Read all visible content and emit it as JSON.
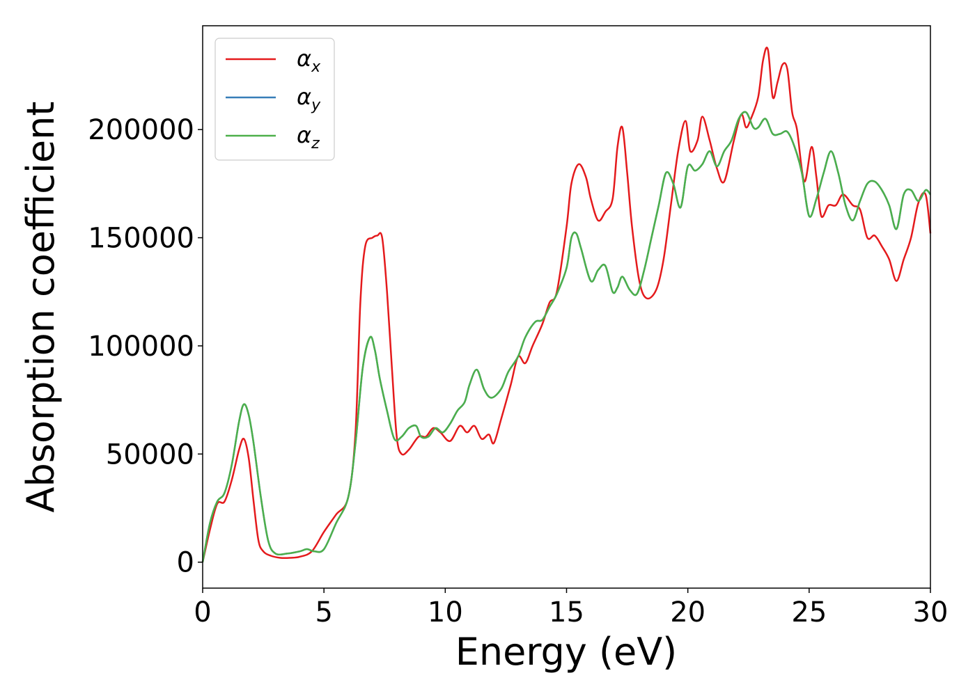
{
  "chart_data": {
    "type": "line",
    "title": "",
    "xlabel": "Energy (eV)",
    "ylabel": "Absorption coefficient",
    "xlim": [
      0,
      30
    ],
    "ylim": [
      -12000,
      248000
    ],
    "xticks": [
      0,
      5,
      10,
      15,
      20,
      25,
      30
    ],
    "xtick_labels": [
      "0",
      "5",
      "10",
      "15",
      "20",
      "25",
      "30"
    ],
    "yticks": [
      0,
      50000,
      100000,
      150000,
      200000
    ],
    "ytick_labels": [
      "0",
      "50000",
      "100000",
      "150000",
      "200000"
    ],
    "grid": false,
    "legend_position": "top-left",
    "series": [
      {
        "name": "α",
        "subscript": "x",
        "color": "#e41a1c",
        "x": [
          0,
          0.3,
          0.6,
          0.9,
          1.2,
          1.5,
          1.7,
          1.9,
          2.1,
          2.3,
          2.5,
          2.8,
          3.2,
          3.6,
          4.0,
          4.5,
          5.0,
          5.5,
          6.0,
          6.3,
          6.5,
          6.7,
          7.0,
          7.2,
          7.4,
          7.6,
          7.8,
          8.0,
          8.2,
          8.5,
          8.9,
          9.2,
          9.5,
          9.8,
          10.2,
          10.6,
          10.9,
          11.2,
          11.5,
          11.8,
          12.0,
          12.3,
          12.7,
          13.0,
          13.3,
          13.6,
          14.0,
          14.3,
          14.6,
          15.0,
          15.2,
          15.5,
          15.8,
          16.0,
          16.3,
          16.6,
          16.9,
          17.1,
          17.3,
          17.5,
          17.7,
          18.0,
          18.3,
          18.7,
          19.0,
          19.3,
          19.6,
          19.9,
          20.1,
          20.4,
          20.6,
          20.9,
          21.2,
          21.5,
          21.9,
          22.2,
          22.4,
          22.6,
          22.9,
          23.1,
          23.3,
          23.5,
          23.7,
          23.9,
          24.1,
          24.3,
          24.5,
          24.8,
          25.1,
          25.3,
          25.5,
          25.8,
          26.1,
          26.4,
          26.8,
          27.1,
          27.4,
          27.7,
          28.0,
          28.3,
          28.6,
          28.9,
          29.2,
          29.5,
          29.8,
          30.0
        ],
        "values": [
          0,
          15000,
          27000,
          28000,
          38000,
          52000,
          57000,
          48000,
          28000,
          10000,
          5000,
          3000,
          2000,
          2000,
          2500,
          5000,
          14000,
          22000,
          30000,
          60000,
          120000,
          146000,
          150000,
          151000,
          150000,
          125000,
          90000,
          58000,
          50000,
          52000,
          58000,
          58000,
          62000,
          60000,
          56000,
          63000,
          60000,
          63000,
          57000,
          59000,
          55000,
          66000,
          82000,
          95000,
          92000,
          100000,
          110000,
          120000,
          125000,
          155000,
          175000,
          184000,
          178000,
          168000,
          158000,
          162000,
          168000,
          192000,
          201000,
          180000,
          155000,
          130000,
          122000,
          126000,
          140000,
          165000,
          190000,
          204000,
          190000,
          195000,
          206000,
          195000,
          182000,
          176000,
          195000,
          207000,
          201000,
          205000,
          215000,
          232000,
          237000,
          215000,
          222000,
          230000,
          228000,
          208000,
          200000,
          176000,
          192000,
          178000,
          160000,
          165000,
          165000,
          170000,
          165000,
          163000,
          150000,
          151000,
          146000,
          140000,
          130000,
          140000,
          150000,
          166000,
          170000,
          152000
        ]
      },
      {
        "name": "α",
        "subscript": "y",
        "color": "#377eb8",
        "x": [
          0,
          0.3,
          0.6,
          0.9,
          1.2,
          1.5,
          1.7,
          1.9,
          2.1,
          2.4,
          2.7,
          3.0,
          3.5,
          4.0,
          4.3,
          4.6,
          5.0,
          5.5,
          6.0,
          6.3,
          6.6,
          6.9,
          7.1,
          7.3,
          7.6,
          7.9,
          8.2,
          8.5,
          8.8,
          9.0,
          9.3,
          9.6,
          9.9,
          10.2,
          10.5,
          10.8,
          11.0,
          11.3,
          11.6,
          11.9,
          12.3,
          12.6,
          13.0,
          13.3,
          13.7,
          14.0,
          14.3,
          14.6,
          15.0,
          15.2,
          15.4,
          15.6,
          16.0,
          16.3,
          16.6,
          16.9,
          17.1,
          17.3,
          17.6,
          17.9,
          18.2,
          18.5,
          18.8,
          19.1,
          19.4,
          19.7,
          20.0,
          20.3,
          20.6,
          20.9,
          21.2,
          21.5,
          21.8,
          22.1,
          22.4,
          22.7,
          22.9,
          23.2,
          23.5,
          23.8,
          24.1,
          24.4,
          24.7,
          25.0,
          25.3,
          25.6,
          25.9,
          26.2,
          26.5,
          26.8,
          27.1,
          27.4,
          27.7,
          28.0,
          28.3,
          28.6,
          28.9,
          29.2,
          29.5,
          29.8,
          30.0
        ],
        "values": [
          0,
          18000,
          28000,
          32000,
          45000,
          65000,
          73000,
          68000,
          55000,
          30000,
          10000,
          4000,
          4000,
          5000,
          6000,
          5000,
          6000,
          18000,
          30000,
          55000,
          90000,
          104000,
          98000,
          85000,
          70000,
          57000,
          58000,
          62000,
          63000,
          58000,
          58000,
          62000,
          60000,
          64000,
          70000,
          74000,
          82000,
          89000,
          80000,
          76000,
          80000,
          88000,
          95000,
          104000,
          111000,
          112000,
          118000,
          124000,
          136000,
          150000,
          152000,
          145000,
          130000,
          135000,
          137000,
          125000,
          127000,
          132000,
          126000,
          124000,
          135000,
          150000,
          165000,
          180000,
          175000,
          164000,
          183000,
          181000,
          184000,
          190000,
          183000,
          190000,
          195000,
          205000,
          208000,
          201000,
          201000,
          205000,
          198000,
          198000,
          199000,
          192000,
          180000,
          160000,
          168000,
          180000,
          190000,
          180000,
          165000,
          158000,
          167000,
          175000,
          176000,
          172000,
          165000,
          154000,
          170000,
          172000,
          167000,
          172000,
          170000
        ]
      },
      {
        "name": "α",
        "subscript": "z",
        "color": "#4daf4a",
        "x": [
          0,
          0.3,
          0.6,
          0.9,
          1.2,
          1.5,
          1.7,
          1.9,
          2.1,
          2.4,
          2.7,
          3.0,
          3.5,
          4.0,
          4.3,
          4.6,
          5.0,
          5.5,
          6.0,
          6.3,
          6.6,
          6.9,
          7.1,
          7.3,
          7.6,
          7.9,
          8.2,
          8.5,
          8.8,
          9.0,
          9.3,
          9.6,
          9.9,
          10.2,
          10.5,
          10.8,
          11.0,
          11.3,
          11.6,
          11.9,
          12.3,
          12.6,
          13.0,
          13.3,
          13.7,
          14.0,
          14.3,
          14.6,
          15.0,
          15.2,
          15.4,
          15.6,
          16.0,
          16.3,
          16.6,
          16.9,
          17.1,
          17.3,
          17.6,
          17.9,
          18.2,
          18.5,
          18.8,
          19.1,
          19.4,
          19.7,
          20.0,
          20.3,
          20.6,
          20.9,
          21.2,
          21.5,
          21.8,
          22.1,
          22.4,
          22.7,
          22.9,
          23.2,
          23.5,
          23.8,
          24.1,
          24.4,
          24.7,
          25.0,
          25.3,
          25.6,
          25.9,
          26.2,
          26.5,
          26.8,
          27.1,
          27.4,
          27.7,
          28.0,
          28.3,
          28.6,
          28.9,
          29.2,
          29.5,
          29.8,
          30.0
        ],
        "values": [
          0,
          18000,
          28000,
          32000,
          45000,
          65000,
          73000,
          68000,
          55000,
          30000,
          10000,
          4000,
          4000,
          5000,
          6000,
          5000,
          6000,
          18000,
          30000,
          55000,
          90000,
          104000,
          98000,
          85000,
          70000,
          57000,
          58000,
          62000,
          63000,
          58000,
          58000,
          62000,
          60000,
          64000,
          70000,
          74000,
          82000,
          89000,
          80000,
          76000,
          80000,
          88000,
          95000,
          104000,
          111000,
          112000,
          118000,
          124000,
          136000,
          150000,
          152000,
          145000,
          130000,
          135000,
          137000,
          125000,
          127000,
          132000,
          126000,
          124000,
          135000,
          150000,
          165000,
          180000,
          175000,
          164000,
          183000,
          181000,
          184000,
          190000,
          183000,
          190000,
          195000,
          205000,
          208000,
          201000,
          201000,
          205000,
          198000,
          198000,
          199000,
          192000,
          180000,
          160000,
          168000,
          180000,
          190000,
          180000,
          165000,
          158000,
          167000,
          175000,
          176000,
          172000,
          165000,
          154000,
          170000,
          172000,
          167000,
          172000,
          170000
        ]
      }
    ]
  }
}
